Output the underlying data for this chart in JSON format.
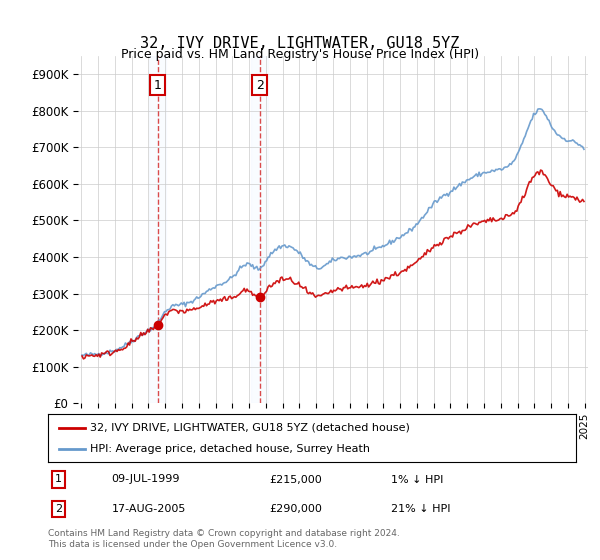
{
  "title": "32, IVY DRIVE, LIGHTWATER, GU18 5YZ",
  "subtitle": "Price paid vs. HM Land Registry's House Price Index (HPI)",
  "legend_line1": "32, IVY DRIVE, LIGHTWATER, GU18 5YZ (detached house)",
  "legend_line2": "HPI: Average price, detached house, Surrey Heath",
  "annotation1_label": "1",
  "annotation1_date": "09-JUL-1999",
  "annotation1_price": "£215,000",
  "annotation1_hpi": "1% ↓ HPI",
  "annotation2_label": "2",
  "annotation2_date": "17-AUG-2005",
  "annotation2_price": "£290,000",
  "annotation2_hpi": "21% ↓ HPI",
  "footer": "Contains HM Land Registry data © Crown copyright and database right 2024.\nThis data is licensed under the Open Government Licence v3.0.",
  "hpi_color": "#6699cc",
  "price_color": "#cc0000",
  "annotation_color": "#cc0000",
  "background_color": "#ffffff",
  "grid_color": "#cccccc",
  "highlight_color": "#ddeeff",
  "ylim": [
    0,
    950000
  ],
  "yticks": [
    0,
    100000,
    200000,
    300000,
    400000,
    500000,
    600000,
    700000,
    800000,
    900000
  ],
  "ytick_labels": [
    "£0",
    "£100K",
    "£200K",
    "£300K",
    "£400K",
    "£500K",
    "£600K",
    "£700K",
    "£800K",
    "£900K"
  ]
}
